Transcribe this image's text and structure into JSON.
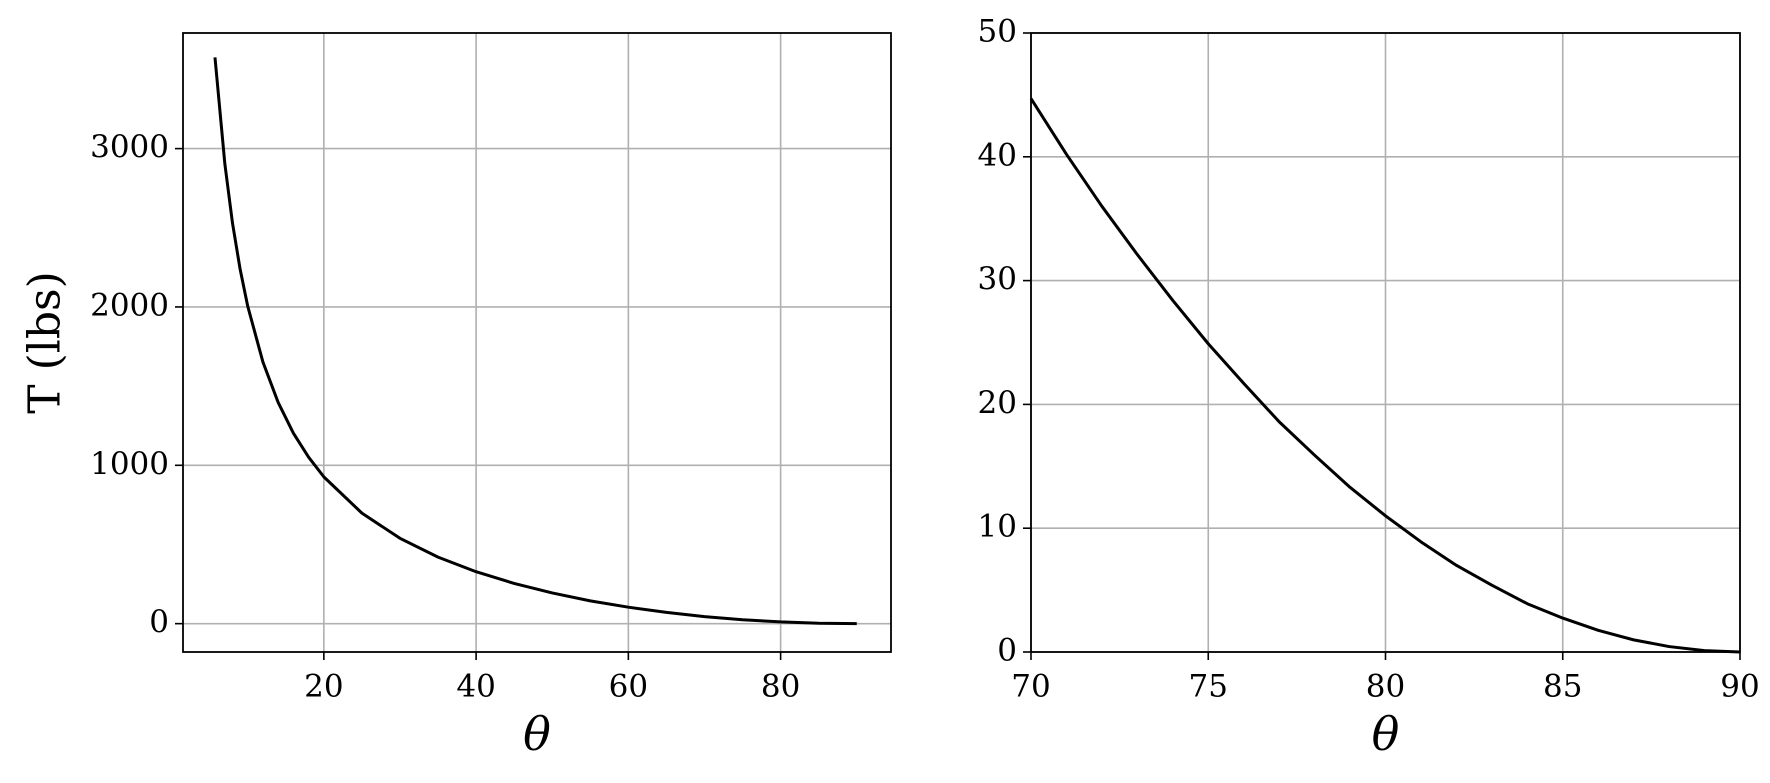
{
  "chart_data": [
    {
      "type": "line",
      "xlabel": "θ",
      "ylabel": "T (lbs)",
      "x": [
        5.7,
        7,
        8,
        9,
        10,
        12,
        14,
        16,
        18,
        20,
        25,
        30,
        35,
        40,
        45,
        50,
        55,
        60,
        65,
        70,
        75,
        80,
        85,
        90
      ],
      "series": [
        {
          "color": "#000000",
          "values": [
            3576,
            2902,
            2530,
            2239,
            2005,
            1652,
            1397,
            1203,
            1051,
            927,
            698,
            539,
            420,
            328,
            254,
            194,
            144,
            104,
            71,
            44.7,
            24.9,
            11.0,
            2.74,
            0
          ]
        }
      ],
      "xlim": [
        1.5,
        94.5
      ],
      "ylim": [
        -179,
        3730
      ],
      "xticks": [
        20,
        40,
        60,
        80
      ],
      "yticks": [
        0,
        1000,
        2000,
        3000
      ],
      "grid": true
    },
    {
      "type": "line",
      "xlabel": "θ",
      "x": [
        70,
        71,
        72,
        73,
        74,
        75,
        76,
        77,
        78,
        79,
        80,
        81,
        82,
        83,
        84,
        85,
        86,
        87,
        88,
        89,
        90
      ],
      "series": [
        {
          "color": "#000000",
          "values": [
            44.7,
            40.2,
            36.0,
            32.1,
            28.4,
            24.9,
            21.7,
            18.6,
            15.9,
            13.3,
            11.0,
            8.9,
            7.0,
            5.4,
            3.9,
            2.74,
            1.75,
            0.98,
            0.44,
            0.11,
            0
          ]
        }
      ],
      "xlim": [
        70,
        90
      ],
      "ylim": [
        0,
        50
      ],
      "xticks": [
        70,
        75,
        80,
        85,
        90
      ],
      "yticks": [
        0,
        10,
        20,
        30,
        40,
        50
      ],
      "grid": true
    }
  ]
}
